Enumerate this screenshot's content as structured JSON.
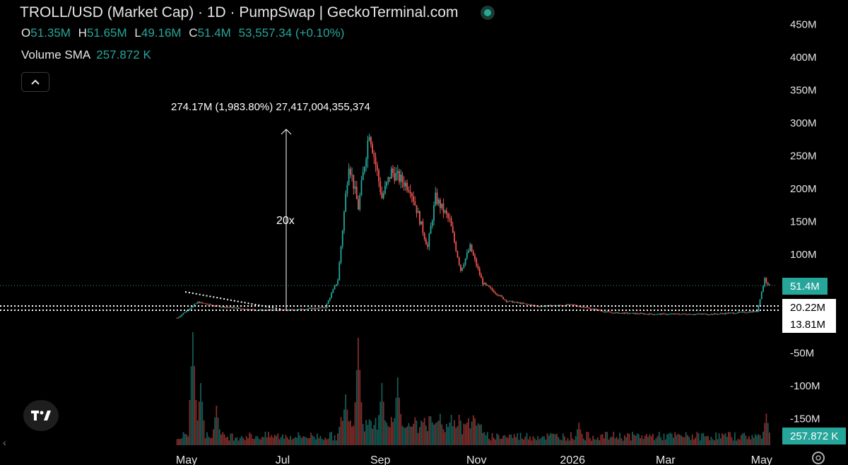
{
  "header": {
    "title": "TROLL/USD (Market Cap) · 1D · PumpSwap | GeckoTerminal.com",
    "ohlc": [
      {
        "key": "O",
        "value": "51.35M"
      },
      {
        "key": "H",
        "value": "51.65M"
      },
      {
        "key": "L",
        "value": "49.16M"
      },
      {
        "key": "C",
        "value": "51.4M"
      }
    ],
    "change": "53,557.34 (+0.10%)",
    "volume_label": "Volume SMA",
    "volume_value": "257.872 K",
    "collapse_icon": "chevron-up-icon"
  },
  "annotations": {
    "measure_text": "274.17M (1,983.80%) 27,417,004,355,374",
    "multiplier": "20x"
  },
  "price_badges": {
    "last": "51.4M",
    "level1": "20.22M",
    "level2": "13.81M",
    "volume": "257.872 K"
  },
  "colors": {
    "up": "#26a69a",
    "down": "#ef5350",
    "badge": "#26a69a",
    "background": "#000000"
  },
  "chart_data": {
    "type": "candlestick",
    "yaxis": {
      "ticks": [
        {
          "label": "450M",
          "value": 450
        },
        {
          "label": "400M",
          "value": 400
        },
        {
          "label": "350M",
          "value": 350
        },
        {
          "label": "300M",
          "value": 300
        },
        {
          "label": "250M",
          "value": 250
        },
        {
          "label": "200M",
          "value": 200
        },
        {
          "label": "150M",
          "value": 150
        },
        {
          "label": "100M",
          "value": 100
        },
        {
          "label": "-50M",
          "value": -50
        },
        {
          "label": "-100M",
          "value": -100
        },
        {
          "label": "-150M",
          "value": -150
        }
      ]
    },
    "xaxis": {
      "ticks": [
        {
          "label": "May",
          "date": "2025-05-01"
        },
        {
          "label": "Jul",
          "date": "2025-07-01"
        },
        {
          "label": "Sep",
          "date": "2025-09-01"
        },
        {
          "label": "Nov",
          "date": "2025-11-01"
        },
        {
          "label": "2026",
          "date": "2026-01-01"
        },
        {
          "label": "Mar",
          "date": "2026-03-01"
        },
        {
          "label": "May",
          "date": "2026-05-01"
        }
      ]
    },
    "key_points": [
      {
        "date": "2025-04-25",
        "mcap": 2
      },
      {
        "date": "2025-05-08",
        "mcap": 26
      },
      {
        "date": "2025-05-20",
        "mcap": 20
      },
      {
        "date": "2025-06-15",
        "mcap": 14
      },
      {
        "date": "2025-07-03",
        "mcap": 13.8
      },
      {
        "date": "2025-07-28",
        "mcap": 18
      },
      {
        "date": "2025-08-05",
        "mcap": 60
      },
      {
        "date": "2025-08-12",
        "mcap": 240
      },
      {
        "date": "2025-08-18",
        "mcap": 170
      },
      {
        "date": "2025-08-25",
        "mcap": 288
      },
      {
        "date": "2025-09-02",
        "mcap": 185
      },
      {
        "date": "2025-09-08",
        "mcap": 225
      },
      {
        "date": "2025-09-20",
        "mcap": 200
      },
      {
        "date": "2025-10-01",
        "mcap": 110
      },
      {
        "date": "2025-10-06",
        "mcap": 185
      },
      {
        "date": "2025-10-15",
        "mcap": 150
      },
      {
        "date": "2025-10-22",
        "mcap": 75
      },
      {
        "date": "2025-10-28",
        "mcap": 110
      },
      {
        "date": "2025-11-05",
        "mcap": 55
      },
      {
        "date": "2025-11-20",
        "mcap": 28
      },
      {
        "date": "2025-12-10",
        "mcap": 20
      },
      {
        "date": "2026-01-01",
        "mcap": 22
      },
      {
        "date": "2026-01-25",
        "mcap": 10
      },
      {
        "date": "2026-02-20",
        "mcap": 8
      },
      {
        "date": "2026-04-01",
        "mcap": 8
      },
      {
        "date": "2026-04-28",
        "mcap": 12
      },
      {
        "date": "2026-05-03",
        "mcap": 62
      },
      {
        "date": "2026-05-06",
        "mcap": 51.4
      }
    ],
    "horizontal_levels": [
      51.4,
      20.22,
      13.81
    ],
    "volume_spikes": [
      {
        "date": "2025-05-05",
        "volume": 1.0
      },
      {
        "date": "2025-05-10",
        "volume": 0.55
      },
      {
        "date": "2025-05-20",
        "volume": 0.35
      },
      {
        "date": "2025-08-10",
        "volume": 0.45
      },
      {
        "date": "2025-08-18",
        "volume": 0.95
      },
      {
        "date": "2025-09-02",
        "volume": 0.55
      },
      {
        "date": "2025-09-12",
        "volume": 0.6
      },
      {
        "date": "2025-10-25",
        "volume": 0.15
      },
      {
        "date": "2026-01-05",
        "volume": 0.2
      },
      {
        "date": "2026-05-04",
        "volume": 0.28
      }
    ]
  }
}
